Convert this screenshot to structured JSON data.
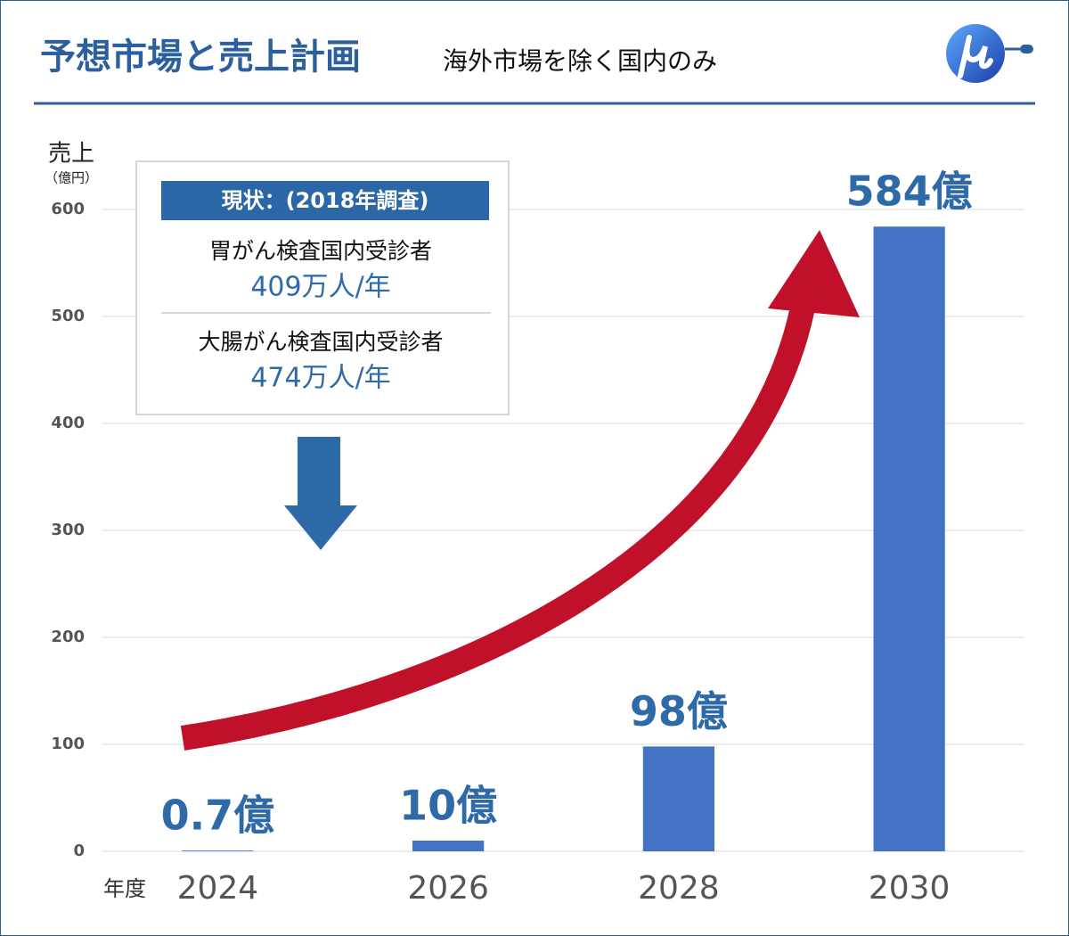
{
  "chart_data": {
    "type": "bar",
    "title": "予想市場と売上計画",
    "subtitle": "海外市場を除く国内のみ",
    "y_label": "売上",
    "y_unit": "（億円）",
    "x_label": "年度",
    "categories": [
      "2024",
      "2026",
      "2028",
      "2030"
    ],
    "values": [
      0.7,
      10,
      98,
      584
    ],
    "value_labels": [
      "0.7億",
      "10億",
      "98億",
      "584億"
    ],
    "color": "#4472c4",
    "ylim": [
      0,
      600
    ],
    "yticks": [
      0,
      100,
      200,
      300,
      400,
      500,
      600
    ],
    "grid": true,
    "annotation": {
      "header": "現状：(2018年調査)",
      "items": [
        {
          "label": "胃がん検査国内受診者",
          "value": "409万人/年"
        },
        {
          "label": "大腸がん検査国内受診者",
          "value": "474万人/年"
        }
      ]
    }
  }
}
